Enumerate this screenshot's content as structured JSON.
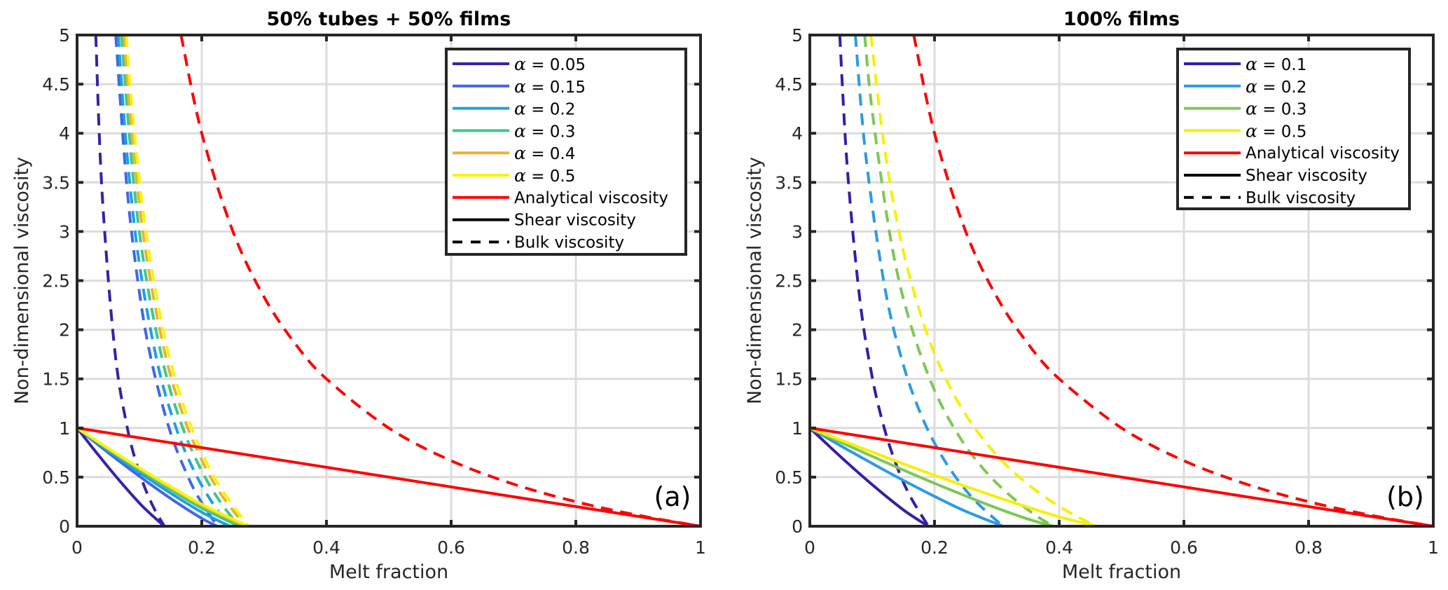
{
  "figure": {
    "panels": [
      "(a)",
      "(b)"
    ]
  },
  "chart_data": [
    {
      "type": "line",
      "title": "50% tubes + 50% films",
      "panel_label": "(a)",
      "xlabel": "Melt fraction",
      "ylabel": "Non-dimensional viscosity",
      "xlim": [
        0,
        1
      ],
      "ylim": [
        0,
        5
      ],
      "xticks": [
        0,
        0.2,
        0.4,
        0.6,
        0.8,
        1
      ],
      "xtick_labels": [
        "0",
        "0.2",
        "0.4",
        "0.6",
        "0.8",
        "1"
      ],
      "yticks": [
        0,
        0.5,
        1,
        1.5,
        2,
        2.5,
        3,
        3.5,
        4,
        4.5,
        5
      ],
      "ytick_labels": [
        "0",
        "0.5",
        "1",
        "1.5",
        "2",
        "2.5",
        "3",
        "3.5",
        "4",
        "4.5",
        "5"
      ],
      "grid": true,
      "legend_position": "top-right",
      "legend": [
        {
          "label": "α = 0.05",
          "alpha_value": "0.05",
          "color": "#3b1fa6",
          "style": "solid"
        },
        {
          "label": "α = 0.15",
          "alpha_value": "0.15",
          "color": "#4366e6",
          "style": "solid"
        },
        {
          "label": "α = 0.2",
          "alpha_value": "0.2",
          "color": "#1ca2de",
          "style": "solid"
        },
        {
          "label": "α = 0.3",
          "alpha_value": "0.3",
          "color": "#3ec88a",
          "style": "solid"
        },
        {
          "label": "α = 0.4",
          "alpha_value": "0.4",
          "color": "#ebb42f",
          "style": "solid"
        },
        {
          "label": "α = 0.5",
          "alpha_value": "0.5",
          "color": "#f5f50c",
          "style": "solid"
        },
        {
          "label": "Analytical viscosity",
          "color": "#ff0000",
          "style": "solid"
        },
        {
          "label": "Shear viscosity",
          "color": "#000000",
          "style": "solid"
        },
        {
          "label": "Bulk viscosity",
          "color": "#000000",
          "style": "dashed"
        }
      ],
      "series": [
        {
          "name": "α = 0.05 shear",
          "color": "#3b1fa6",
          "style": "solid",
          "x": [
            0,
            0.035,
            0.07,
            0.105,
            0.14,
            1
          ],
          "y": [
            1,
            0.718,
            0.45,
            0.203,
            0,
            0
          ]
        },
        {
          "name": "α = 0.05 bulk",
          "color": "#3b1fa6",
          "style": "dashed",
          "x": [
            0.03,
            0.04,
            0.06,
            0.08,
            0.1,
            0.12,
            0.14
          ],
          "y": [
            5,
            3.41,
            1.82,
            1.02,
            0.546,
            0.227,
            0
          ]
        },
        {
          "name": "α = 0.15 shear",
          "color": "#4366e6",
          "style": "solid",
          "x": [
            0,
            0.05,
            0.1,
            0.15,
            0.2,
            0.225,
            1
          ],
          "y": [
            1,
            0.749,
            0.509,
            0.283,
            0.08,
            0,
            0
          ]
        },
        {
          "name": "α = 0.15 bulk",
          "color": "#4366e6",
          "style": "dashed",
          "x": [
            0.062,
            0.08,
            0.1,
            0.12,
            0.15,
            0.18,
            0.2,
            0.225
          ],
          "y": [
            5,
            3.45,
            2.38,
            1.664,
            0.951,
            0.476,
            0.238,
            0
          ]
        },
        {
          "name": "α = 0.2 shear",
          "color": "#1ca2de",
          "style": "solid",
          "x": [
            0,
            0.05,
            0.1,
            0.15,
            0.2,
            0.245,
            1
          ],
          "y": [
            1,
            0.769,
            0.547,
            0.337,
            0.143,
            0,
            0
          ]
        },
        {
          "name": "α = 0.2 bulk",
          "color": "#1ca2de",
          "style": "dashed",
          "x": [
            0.066,
            0.08,
            0.1,
            0.13,
            0.16,
            0.19,
            0.22,
            0.245
          ],
          "y": [
            5,
            3.8,
            2.67,
            1.631,
            0.98,
            0.534,
            0.21,
            0
          ]
        },
        {
          "name": "α = 0.3 shear",
          "color": "#3ec88a",
          "style": "solid",
          "x": [
            0,
            0.05,
            0.1,
            0.15,
            0.2,
            0.26,
            1
          ],
          "y": [
            1,
            0.783,
            0.572,
            0.372,
            0.185,
            0,
            0
          ]
        },
        {
          "name": "α = 0.3 bulk",
          "color": "#3ec88a",
          "style": "dashed",
          "x": [
            0.071,
            0.09,
            0.11,
            0.14,
            0.17,
            0.2,
            0.23,
            0.26
          ],
          "y": [
            5,
            3.55,
            2.56,
            1.61,
            0.994,
            0.563,
            0.245,
            0
          ]
        },
        {
          "name": "α = 0.4 shear",
          "color": "#ebb42f",
          "style": "solid",
          "x": [
            0,
            0.05,
            0.1,
            0.15,
            0.2,
            0.27,
            1
          ],
          "y": [
            1,
            0.79,
            0.588,
            0.393,
            0.212,
            0,
            0
          ]
        },
        {
          "name": "α = 0.4 bulk",
          "color": "#ebb42f",
          "style": "dashed",
          "x": [
            0.075,
            0.09,
            0.11,
            0.14,
            0.17,
            0.2,
            0.23,
            0.27
          ],
          "y": [
            5,
            3.85,
            2.8,
            1.786,
            1.131,
            0.673,
            0.334,
            0
          ]
        },
        {
          "name": "α = 0.5 shear",
          "color": "#f5f50c",
          "style": "solid",
          "x": [
            0,
            0.05,
            0.1,
            0.15,
            0.2,
            0.275,
            1
          ],
          "y": [
            1,
            0.794,
            0.594,
            0.404,
            0.224,
            0,
            0
          ]
        },
        {
          "name": "α = 0.5 bulk",
          "color": "#f5f50c",
          "style": "dashed",
          "x": [
            0.079,
            0.09,
            0.11,
            0.14,
            0.17,
            0.2,
            0.23,
            0.275
          ],
          "y": [
            5,
            4.14,
            3.02,
            1.943,
            1.245,
            0.756,
            0.394,
            0
          ]
        },
        {
          "name": "Analytical shear",
          "color": "#ff0000",
          "style": "solid",
          "x": [
            0,
            1
          ],
          "y": [
            1,
            0
          ]
        },
        {
          "name": "Analytical bulk",
          "color": "#ff0000",
          "style": "dashed",
          "x": [
            0.1667,
            0.2,
            0.25,
            0.3,
            0.35,
            0.4,
            0.5,
            0.6,
            0.7,
            0.8,
            0.9,
            1
          ],
          "y": [
            5,
            4,
            3,
            2.333,
            1.857,
            1.5,
            1,
            0.667,
            0.429,
            0.25,
            0.111,
            0
          ]
        }
      ]
    },
    {
      "type": "line",
      "title": "100% films",
      "panel_label": "(b)",
      "xlabel": "Melt fraction",
      "ylabel": "Non-dimensional viscosity",
      "xlim": [
        0,
        1
      ],
      "ylim": [
        0,
        5
      ],
      "xticks": [
        0,
        0.2,
        0.4,
        0.6,
        0.8,
        1
      ],
      "xtick_labels": [
        "0",
        "0.2",
        "0.4",
        "0.6",
        "0.8",
        "1"
      ],
      "yticks": [
        0,
        0.5,
        1,
        1.5,
        2,
        2.5,
        3,
        3.5,
        4,
        4.5,
        5
      ],
      "ytick_labels": [
        "0",
        "0.5",
        "1",
        "1.5",
        "2",
        "2.5",
        "3",
        "3.5",
        "4",
        "4.5",
        "5"
      ],
      "grid": true,
      "legend_position": "top-right",
      "legend": [
        {
          "label": "α = 0.1",
          "alpha_value": "0.1",
          "color": "#3a1ba5",
          "style": "solid"
        },
        {
          "label": "α = 0.2",
          "alpha_value": "0.2",
          "color": "#2c9ae6",
          "style": "solid"
        },
        {
          "label": "α = 0.3",
          "alpha_value": "0.3",
          "color": "#7cc855",
          "style": "solid"
        },
        {
          "label": "α = 0.5",
          "alpha_value": "0.5",
          "color": "#f5f000",
          "style": "solid"
        },
        {
          "label": "Analytical viscosity",
          "color": "#ff0000",
          "style": "solid"
        },
        {
          "label": "Shear viscosity",
          "color": "#000000",
          "style": "solid"
        },
        {
          "label": "Bulk viscosity",
          "color": "#000000",
          "style": "dashed"
        }
      ],
      "series": [
        {
          "name": "α = 0.1 shear",
          "color": "#3a1ba5",
          "style": "solid",
          "x": [
            0,
            0.05,
            0.1,
            0.15,
            0.19,
            1
          ],
          "y": [
            1,
            0.704,
            0.424,
            0.167,
            0,
            0
          ]
        },
        {
          "name": "α = 0.1 bulk",
          "color": "#3a1ba5",
          "style": "dashed",
          "x": [
            0.048,
            0.06,
            0.08,
            0.1,
            0.12,
            0.14,
            0.16,
            0.19
          ],
          "y": [
            5,
            3.66,
            2.32,
            1.52,
            0.986,
            0.604,
            0.317,
            0
          ]
        },
        {
          "name": "α = 0.2 shear",
          "color": "#2c9ae6",
          "style": "solid",
          "x": [
            0,
            0.05,
            0.1,
            0.15,
            0.2,
            0.25,
            0.31,
            1
          ],
          "y": [
            1,
            0.817,
            0.639,
            0.467,
            0.304,
            0.152,
            0,
            0
          ]
        },
        {
          "name": "α = 0.2 bulk",
          "color": "#2c9ae6",
          "style": "dashed",
          "x": [
            0.073,
            0.09,
            0.12,
            0.15,
            0.18,
            0.21,
            0.24,
            0.27,
            0.31
          ],
          "y": [
            5,
            3.76,
            2.44,
            1.643,
            1.112,
            0.733,
            0.449,
            0.228,
            0
          ]
        },
        {
          "name": "α = 0.3 shear",
          "color": "#7cc855",
          "style": "solid",
          "x": [
            0,
            0.05,
            0.1,
            0.15,
            0.2,
            0.25,
            0.3,
            0.35,
            0.39,
            1
          ],
          "y": [
            1,
            0.854,
            0.712,
            0.572,
            0.437,
            0.308,
            0.185,
            0.073,
            0,
            0
          ]
        },
        {
          "name": "α = 0.3 bulk",
          "color": "#7cc855",
          "style": "dashed",
          "x": [
            0.088,
            0.1,
            0.13,
            0.16,
            0.2,
            0.24,
            0.28,
            0.32,
            0.36,
            0.39
          ],
          "y": [
            5,
            4.23,
            2.91,
            2.09,
            1.384,
            0.911,
            0.572,
            0.319,
            0.121,
            0
          ]
        },
        {
          "name": "α = 0.5 shear",
          "color": "#f5f000",
          "style": "solid",
          "x": [
            0,
            0.05,
            0.1,
            0.15,
            0.2,
            0.25,
            0.3,
            0.35,
            0.4,
            0.46,
            1
          ],
          "y": [
            1,
            0.876,
            0.755,
            0.635,
            0.519,
            0.406,
            0.297,
            0.193,
            0.096,
            0,
            0
          ]
        },
        {
          "name": "α = 0.5 bulk",
          "color": "#f5f000",
          "style": "dashed",
          "x": [
            0.098,
            0.12,
            0.15,
            0.19,
            0.23,
            0.27,
            0.31,
            0.35,
            0.39,
            0.43,
            0.46
          ],
          "y": [
            5,
            3.84,
            2.8,
            1.924,
            1.354,
            0.953,
            0.655,
            0.426,
            0.243,
            0.094,
            0
          ]
        },
        {
          "name": "Analytical shear",
          "color": "#ff0000",
          "style": "solid",
          "x": [
            0,
            1
          ],
          "y": [
            1,
            0
          ]
        },
        {
          "name": "Analytical bulk",
          "color": "#ff0000",
          "style": "dashed",
          "x": [
            0.1667,
            0.2,
            0.25,
            0.3,
            0.35,
            0.4,
            0.5,
            0.6,
            0.7,
            0.8,
            0.9,
            1
          ],
          "y": [
            5,
            4,
            3,
            2.333,
            1.857,
            1.5,
            1,
            0.667,
            0.429,
            0.25,
            0.111,
            0
          ]
        }
      ]
    }
  ]
}
